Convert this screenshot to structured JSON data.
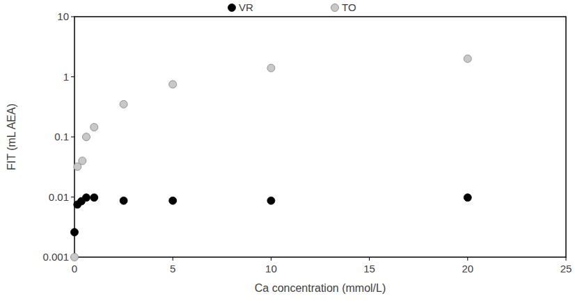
{
  "chart_data": {
    "type": "scatter",
    "x_label": "Ca concentration (mmol/L)",
    "y_label": "FIT (mL AEA)",
    "log": "y",
    "grid": false,
    "legend": "top",
    "xlim": [
      0,
      25
    ],
    "xticks": [
      0,
      5,
      10,
      15,
      20,
      25
    ],
    "ylim": [
      0.001,
      10
    ],
    "yticks": [
      0.001,
      0.01,
      0.1,
      1,
      10
    ],
    "series": [
      {
        "name": "VR",
        "color": "#000000",
        "marker": "circle",
        "x": [
          0,
          0.15,
          0.35,
          0.6,
          1,
          2.5,
          5,
          10,
          20
        ],
        "values": [
          0.0026,
          0.0075,
          0.0085,
          0.0098,
          0.0098,
          0.0087,
          0.0087,
          0.0087,
          0.0098
        ]
      },
      {
        "name": "TO",
        "color": "#c8c8c8",
        "marker": "circle",
        "x": [
          0,
          0.15,
          0.4,
          0.6,
          1,
          2.5,
          5,
          10,
          20
        ],
        "values": [
          0.001,
          0.032,
          0.04,
          0.1,
          0.145,
          0.35,
          0.75,
          1.4,
          2.0
        ]
      }
    ]
  }
}
